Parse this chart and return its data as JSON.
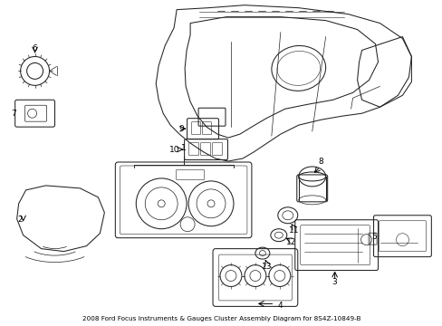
{
  "bg_color": "#ffffff",
  "line_color": "#222222",
  "text_color": "#000000",
  "fig_width": 4.89,
  "fig_height": 3.6,
  "dpi": 100,
  "label_fontsize": 6.5,
  "line_width": 0.75
}
